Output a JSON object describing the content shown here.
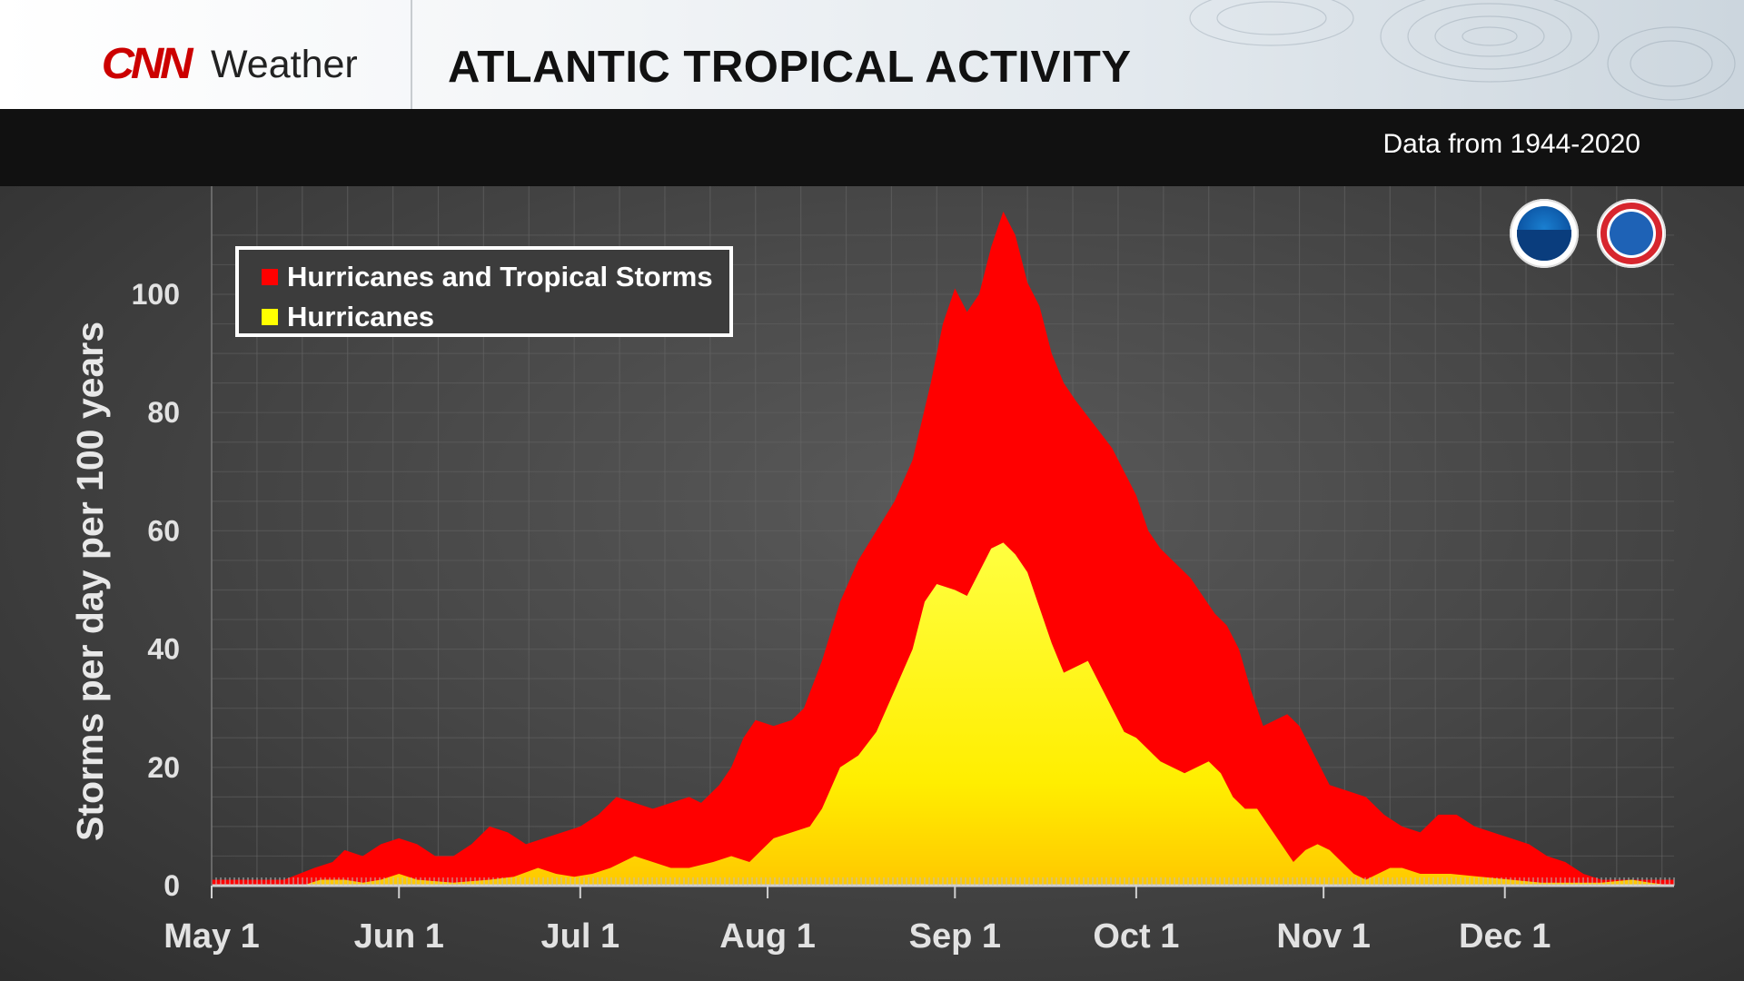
{
  "header": {
    "brand_logo": "CNN",
    "brand_name": "Weather",
    "title": "ATLANTIC TROPICAL ACTIVITY"
  },
  "subtitle": "Data from 1944-2020",
  "logos": [
    "noaa-seal",
    "national-weather-service-seal"
  ],
  "colors": {
    "total": "#ff0000",
    "hurricanes": "#ffff00",
    "background": "#444444"
  },
  "chart_data": {
    "type": "area",
    "title": "ATLANTIC TROPICAL ACTIVITY",
    "ylabel": "Storms per day per 100 years",
    "xlabel": "",
    "ylim": [
      0,
      110
    ],
    "yticks": [
      0,
      20,
      40,
      60,
      80,
      100
    ],
    "xlim_days": [
      0,
      242
    ],
    "xticks": [
      {
        "label": "May 1",
        "day": 0
      },
      {
        "label": "Jun 1",
        "day": 31
      },
      {
        "label": "Jul 1",
        "day": 61
      },
      {
        "label": "Aug 1",
        "day": 92
      },
      {
        "label": "Sep 1",
        "day": 123
      },
      {
        "label": "Oct 1",
        "day": 153
      },
      {
        "label": "Nov 1",
        "day": 184
      },
      {
        "label": "Dec 1",
        "day": 214
      }
    ],
    "grid": true,
    "legend_position": "top-left",
    "series": [
      {
        "name": "Hurricanes and Tropical Storms",
        "color": "#ff0000",
        "points": [
          [
            0,
            1
          ],
          [
            5,
            1
          ],
          [
            12,
            1
          ],
          [
            17,
            3
          ],
          [
            20,
            4
          ],
          [
            22,
            6
          ],
          [
            25,
            5
          ],
          [
            28,
            7
          ],
          [
            31,
            8
          ],
          [
            34,
            7
          ],
          [
            37,
            5
          ],
          [
            40,
            5
          ],
          [
            43,
            7
          ],
          [
            46,
            10
          ],
          [
            49,
            9
          ],
          [
            52,
            7
          ],
          [
            55,
            8
          ],
          [
            58,
            9
          ],
          [
            61,
            10
          ],
          [
            64,
            12
          ],
          [
            67,
            15
          ],
          [
            70,
            14
          ],
          [
            73,
            13
          ],
          [
            76,
            14
          ],
          [
            79,
            15
          ],
          [
            81,
            14
          ],
          [
            84,
            17
          ],
          [
            86,
            20
          ],
          [
            88,
            25
          ],
          [
            90,
            28
          ],
          [
            93,
            27
          ],
          [
            96,
            28
          ],
          [
            98,
            30
          ],
          [
            101,
            38
          ],
          [
            104,
            48
          ],
          [
            107,
            55
          ],
          [
            110,
            60
          ],
          [
            113,
            65
          ],
          [
            116,
            72
          ],
          [
            119,
            85
          ],
          [
            121,
            95
          ],
          [
            123,
            101
          ],
          [
            125,
            97
          ],
          [
            127,
            100
          ],
          [
            129,
            108
          ],
          [
            131,
            114
          ],
          [
            133,
            110
          ],
          [
            135,
            102
          ],
          [
            137,
            98
          ],
          [
            139,
            90
          ],
          [
            141,
            85
          ],
          [
            143,
            82
          ],
          [
            146,
            78
          ],
          [
            149,
            74
          ],
          [
            151,
            70
          ],
          [
            153,
            66
          ],
          [
            155,
            60
          ],
          [
            157,
            57
          ],
          [
            160,
            54
          ],
          [
            162,
            52
          ],
          [
            164,
            49
          ],
          [
            166,
            46
          ],
          [
            168,
            44
          ],
          [
            170,
            40
          ],
          [
            172,
            33
          ],
          [
            174,
            27
          ],
          [
            176,
            28
          ],
          [
            178,
            29
          ],
          [
            180,
            27
          ],
          [
            183,
            21
          ],
          [
            185,
            17
          ],
          [
            188,
            16
          ],
          [
            191,
            15
          ],
          [
            194,
            12
          ],
          [
            197,
            10
          ],
          [
            200,
            9
          ],
          [
            203,
            12
          ],
          [
            206,
            12
          ],
          [
            209,
            10
          ],
          [
            212,
            9
          ],
          [
            215,
            8
          ],
          [
            218,
            7
          ],
          [
            221,
            5
          ],
          [
            224,
            4
          ],
          [
            227,
            2
          ],
          [
            230,
            1
          ],
          [
            233,
            1
          ],
          [
            237,
            1
          ],
          [
            242,
            1
          ]
        ]
      },
      {
        "name": "Hurricanes",
        "color": "#ffff00",
        "points": [
          [
            0,
            0
          ],
          [
            15,
            0
          ],
          [
            18,
            1
          ],
          [
            22,
            1
          ],
          [
            25,
            0.5
          ],
          [
            28,
            1
          ],
          [
            31,
            2
          ],
          [
            34,
            1
          ],
          [
            40,
            0.5
          ],
          [
            46,
            1
          ],
          [
            50,
            1.5
          ],
          [
            54,
            3
          ],
          [
            57,
            2
          ],
          [
            60,
            1.5
          ],
          [
            63,
            2
          ],
          [
            66,
            3
          ],
          [
            68,
            4
          ],
          [
            70,
            5
          ],
          [
            73,
            4
          ],
          [
            76,
            3
          ],
          [
            79,
            3
          ],
          [
            83,
            4
          ],
          [
            86,
            5
          ],
          [
            89,
            4
          ],
          [
            91,
            6
          ],
          [
            93,
            8
          ],
          [
            96,
            9
          ],
          [
            99,
            10
          ],
          [
            101,
            13
          ],
          [
            104,
            20
          ],
          [
            107,
            22
          ],
          [
            110,
            26
          ],
          [
            113,
            33
          ],
          [
            116,
            40
          ],
          [
            118,
            48
          ],
          [
            120,
            51
          ],
          [
            123,
            50
          ],
          [
            125,
            49
          ],
          [
            127,
            53
          ],
          [
            129,
            57
          ],
          [
            131,
            58
          ],
          [
            133,
            56
          ],
          [
            135,
            53
          ],
          [
            137,
            47
          ],
          [
            139,
            41
          ],
          [
            141,
            36
          ],
          [
            143,
            37
          ],
          [
            145,
            38
          ],
          [
            147,
            34
          ],
          [
            149,
            30
          ],
          [
            151,
            26
          ],
          [
            153,
            25
          ],
          [
            155,
            23
          ],
          [
            157,
            21
          ],
          [
            159,
            20
          ],
          [
            161,
            19
          ],
          [
            163,
            20
          ],
          [
            165,
            21
          ],
          [
            167,
            19
          ],
          [
            169,
            15
          ],
          [
            171,
            13
          ],
          [
            173,
            13
          ],
          [
            175,
            10
          ],
          [
            177,
            7
          ],
          [
            179,
            4
          ],
          [
            181,
            6
          ],
          [
            183,
            7
          ],
          [
            185,
            6
          ],
          [
            187,
            4
          ],
          [
            189,
            2
          ],
          [
            191,
            1
          ],
          [
            193,
            2
          ],
          [
            195,
            3
          ],
          [
            197,
            3
          ],
          [
            200,
            2
          ],
          [
            205,
            2
          ],
          [
            210,
            1.5
          ],
          [
            215,
            1
          ],
          [
            220,
            0.5
          ],
          [
            225,
            0.5
          ],
          [
            230,
            0.5
          ],
          [
            235,
            1
          ],
          [
            238,
            0.5
          ],
          [
            242,
            0
          ]
        ]
      }
    ]
  }
}
